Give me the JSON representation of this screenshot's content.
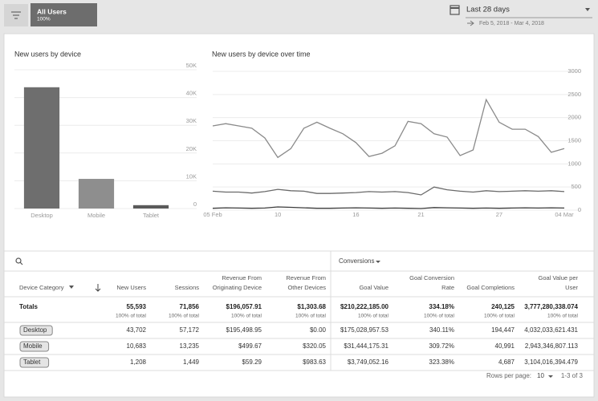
{
  "header": {
    "segment": "All Users",
    "segment_share": "100%",
    "date_range_label": "Last 28 days",
    "date_range": "Feb 5, 2018 - Mar 4, 2018"
  },
  "chart_data": [
    {
      "type": "bar",
      "title": "New users by device",
      "categories": [
        "Desktop",
        "Mobile",
        "Tablet"
      ],
      "values": [
        43702,
        10683,
        1208
      ],
      "colors": [
        "#6e6e6e",
        "#8e8e8e",
        "#5a5a5a"
      ],
      "ylim": [
        0,
        50000
      ],
      "yticks": [
        0,
        {
          "value": 10000,
          "label": "10K"
        },
        {
          "value": 20000,
          "label": "20K"
        },
        {
          "value": 30000,
          "label": "30K"
        },
        {
          "value": 40000,
          "label": "40K"
        },
        {
          "value": 50000,
          "label": "50K"
        }
      ],
      "grid": true
    },
    {
      "type": "line",
      "title": "New users by device over time",
      "categories": [
        "05 Feb",
        null,
        null,
        null,
        null,
        "10",
        null,
        null,
        null,
        null,
        null,
        "16",
        null,
        null,
        null,
        null,
        "21",
        null,
        null,
        null,
        null,
        null,
        "27",
        null,
        null,
        null,
        null,
        "04 Mar"
      ],
      "series": [
        {
          "name": "Desktop",
          "color": "#8a8a8a",
          "values": [
            1820,
            1870,
            1820,
            1770,
            1560,
            1140,
            1330,
            1770,
            1900,
            1770,
            1650,
            1460,
            1160,
            1230,
            1390,
            1920,
            1870,
            1650,
            1580,
            1180,
            1300,
            2390,
            1900,
            1750,
            1750,
            1590,
            1250,
            1330
          ]
        },
        {
          "name": "Mobile",
          "color": "#6a6a6a",
          "values": [
            410,
            390,
            390,
            370,
            400,
            450,
            420,
            410,
            360,
            360,
            370,
            380,
            400,
            390,
            400,
            380,
            330,
            500,
            440,
            410,
            390,
            420,
            400,
            410,
            420,
            410,
            420,
            400
          ]
        },
        {
          "name": "Tablet",
          "color": "#3c3c3c",
          "values": [
            40,
            50,
            45,
            40,
            45,
            70,
            60,
            50,
            40,
            40,
            45,
            50,
            45,
            40,
            45,
            40,
            35,
            55,
            50,
            45,
            40,
            45,
            40,
            45,
            50,
            45,
            50,
            45
          ]
        }
      ],
      "ylim": [
        0,
        3000
      ],
      "yticks": [
        0,
        500,
        1000,
        1500,
        2000,
        2500,
        3000
      ],
      "grid": true
    }
  ],
  "table": {
    "conversions_menu": "Conversions",
    "columns": [
      [
        "Device Category"
      ],
      [
        "New Users"
      ],
      [
        "Sessions"
      ],
      [
        "Revenue From",
        "Originating Device"
      ],
      [
        "Revenue From",
        "Other Devices"
      ],
      [
        "Goal Value"
      ],
      [
        "Goal Conversion",
        "Rate"
      ],
      [
        "Goal Completions"
      ],
      [
        "Goal Value per",
        "User"
      ]
    ],
    "totals": {
      "label": "Totals",
      "values": [
        "55,593",
        "71,856",
        "$196,057.91",
        "$1,303.68",
        "$210,222,185.00",
        "334.18%",
        "240,125",
        "3,777,280,338.074"
      ],
      "sublabels": [
        "100% of total",
        "100% of total",
        "100% of total",
        "100% of total",
        "100% of total",
        "100% of total",
        "100% of total",
        "100% of total"
      ]
    },
    "rows": [
      [
        "Desktop",
        "43,702",
        "57,172",
        "$195,498.95",
        "$0.00",
        "$175,028,957.53",
        "340.11%",
        "194,447",
        "4,032,033,621.431"
      ],
      [
        "Mobile",
        "10,683",
        "13,235",
        "$499.67",
        "$320.05",
        "$31,444,175.31",
        "309.72%",
        "40,991",
        "2,943,346,807.113"
      ],
      [
        "Tablet",
        "1,208",
        "1,449",
        "$59.29",
        "$983.63",
        "$3,749,052.16",
        "323.38%",
        "4,687",
        "3,104,016,394.479"
      ]
    ],
    "footer": {
      "rows_per_page_label": "Rows per page:",
      "rows_per_page": "10",
      "range": "1-3 of 3"
    }
  }
}
